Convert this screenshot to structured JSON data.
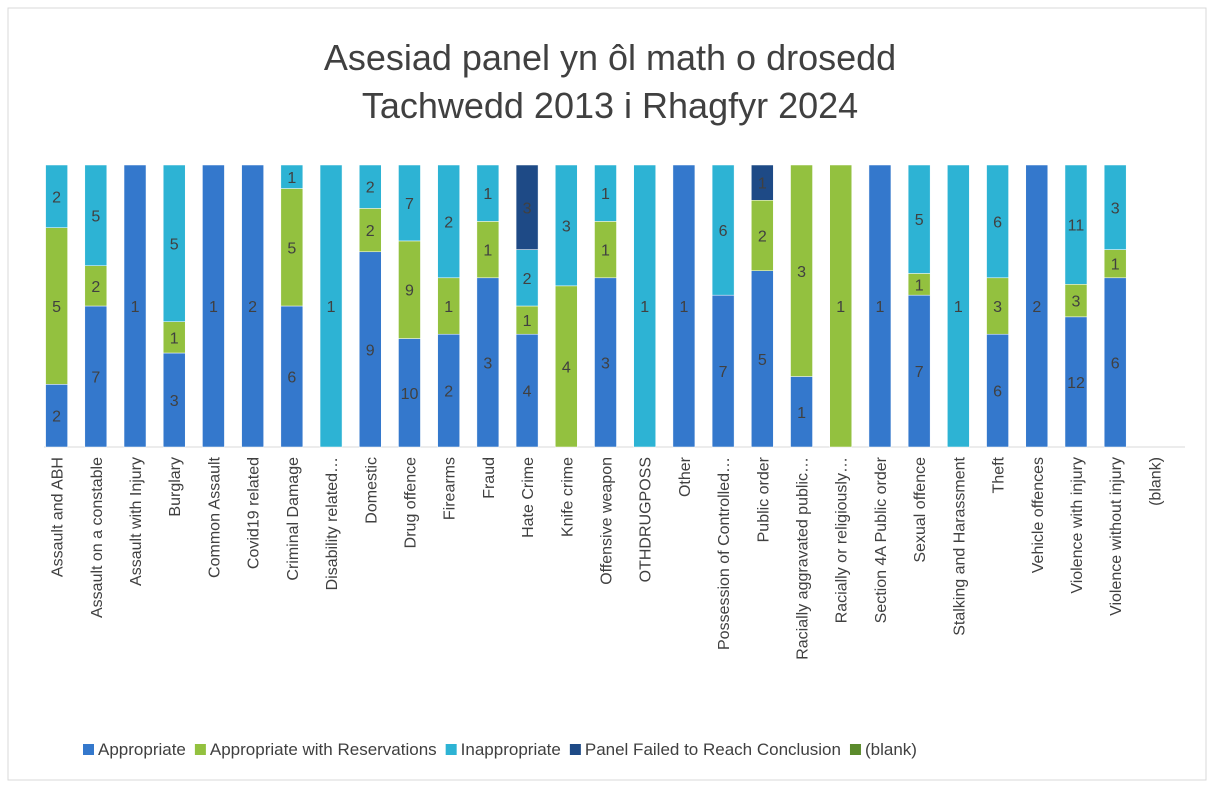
{
  "chart_data": {
    "type": "stacked_percent_bar",
    "title": "Asesiad panel yn ôl math o drosedd",
    "subtitle": "Tachwedd 2013 i Rhagfyr 2024",
    "categories": [
      "Assault and ABH",
      "Assault on a constable",
      "Assault with Injury",
      "Burglary",
      "Common Assault",
      "Covid19 related",
      "Criminal Damage",
      "Disability related…",
      "Domestic",
      "Drug offence",
      "Firearms",
      "Fraud",
      "Hate Crime",
      "Knife crime",
      "Offensive weapon",
      "OTHDRUGPOSS",
      "Other",
      "Possession of Controlled…",
      "Public order",
      "Racially aggravated public…",
      "Racially or religiously…",
      "Section 4A Public order",
      "Sexual offence",
      "Stalking and Harassment",
      "Theft",
      "Vehicle offences",
      "Violence with injury",
      "Violence without injury",
      "(blank)"
    ],
    "series": [
      {
        "name": "Appropriate",
        "color": "#3478cc",
        "values": [
          2,
          7,
          1,
          3,
          1,
          2,
          6,
          null,
          9,
          10,
          2,
          3,
          4,
          null,
          3,
          null,
          1,
          7,
          5,
          1,
          null,
          1,
          7,
          null,
          6,
          2,
          12,
          6,
          null
        ]
      },
      {
        "name": "Appropriate with Reservations",
        "color": "#93c13f",
        "values": [
          5,
          2,
          null,
          1,
          null,
          null,
          5,
          null,
          2,
          9,
          1,
          1,
          1,
          4,
          1,
          null,
          null,
          null,
          2,
          3,
          1,
          null,
          1,
          null,
          3,
          null,
          3,
          1,
          null
        ]
      },
      {
        "name": "Inappropriate",
        "color": "#2db3d4",
        "values": [
          2,
          5,
          null,
          5,
          null,
          null,
          1,
          1,
          2,
          7,
          2,
          1,
          2,
          3,
          1,
          1,
          null,
          6,
          null,
          null,
          null,
          null,
          5,
          1,
          6,
          null,
          11,
          3,
          null
        ]
      },
      {
        "name": "Panel Failed to Reach Conclusion",
        "color": "#1e4a86",
        "values": [
          null,
          null,
          null,
          null,
          null,
          null,
          null,
          null,
          null,
          null,
          null,
          null,
          3,
          null,
          null,
          null,
          null,
          null,
          1,
          null,
          null,
          null,
          null,
          null,
          null,
          null,
          null,
          null,
          null
        ]
      },
      {
        "name": "(blank)",
        "color": "#5b8b2c",
        "values": [
          null,
          null,
          null,
          null,
          null,
          null,
          null,
          null,
          null,
          null,
          null,
          null,
          null,
          null,
          null,
          null,
          null,
          null,
          null,
          null,
          null,
          null,
          null,
          null,
          null,
          null,
          null,
          null,
          null
        ]
      }
    ]
  }
}
